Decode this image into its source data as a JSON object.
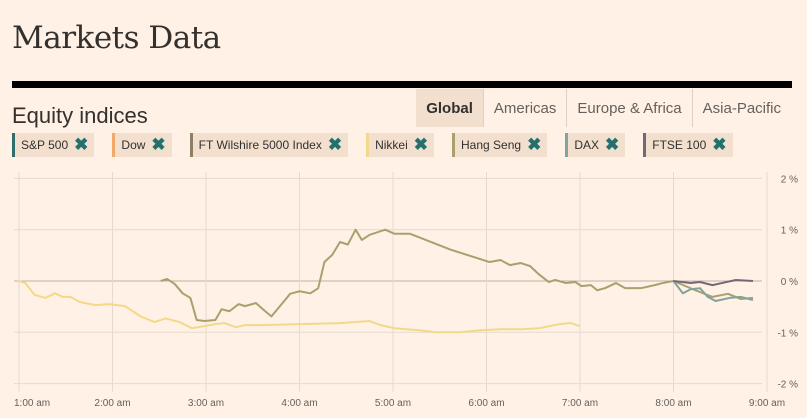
{
  "title": "Markets Data",
  "section": "Equity indices",
  "tabs": [
    {
      "label": "Global",
      "active": true
    },
    {
      "label": "Americas"
    },
    {
      "label": "Europe & Africa"
    },
    {
      "label": "Asia-Pacific"
    }
  ],
  "chips": [
    {
      "label": "S&P 500",
      "color": "#2e6f6e"
    },
    {
      "label": "Dow",
      "color": "#f0a968"
    },
    {
      "label": "FT Wilshire 5000 Index",
      "color": "#8f7f66"
    },
    {
      "label": "Nikkei",
      "color": "#f2d98a"
    },
    {
      "label": "Hang Seng",
      "color": "#ac9f6e"
    },
    {
      "label": "DAX",
      "color": "#7fa4a0"
    },
    {
      "label": "FTSE 100",
      "color": "#736878"
    }
  ],
  "remove_icon": "close-icon",
  "chart_data": {
    "type": "line",
    "xlabel": "",
    "ylabel": "",
    "x_ticks": [
      "1:00 am",
      "2:00 am",
      "3:00 am",
      "4:00 am",
      "5:00 am",
      "6:00 am",
      "7:00 am",
      "8:00 am",
      "9:00 am"
    ],
    "y_ticks": [
      "2 %",
      "1 %",
      "0 %",
      "-1 %",
      "-2 %"
    ],
    "ylim": [
      -2,
      2
    ],
    "xlim": [
      "1:00",
      "9:00"
    ],
    "grid": true,
    "series": [
      {
        "name": "Nikkei",
        "color": "#f2d98a",
        "points": [
          [
            "1:00",
            0
          ],
          [
            "1:04",
            -0.04
          ],
          [
            "1:10",
            -0.27
          ],
          [
            "1:17",
            -0.33
          ],
          [
            "1:23",
            -0.24
          ],
          [
            "1:28",
            -0.31
          ],
          [
            "1:33",
            -0.31
          ],
          [
            "1:39",
            -0.41
          ],
          [
            "1:49",
            -0.47
          ],
          [
            "1:58",
            -0.45
          ],
          [
            "2:08",
            -0.49
          ],
          [
            "2:18",
            -0.69
          ],
          [
            "2:27",
            -0.8
          ],
          [
            "2:34",
            -0.73
          ],
          [
            "2:43",
            -0.8
          ],
          [
            "2:51",
            -0.92
          ],
          [
            "2:59",
            -0.88
          ],
          [
            "3:06",
            -0.84
          ],
          [
            "3:12",
            -0.82
          ],
          [
            "3:19",
            -0.9
          ],
          [
            "3:25",
            -0.86
          ],
          [
            "3:35",
            -0.86
          ],
          [
            "4:00",
            -0.84
          ],
          [
            "4:26",
            -0.82
          ],
          [
            "4:45",
            -0.78
          ],
          [
            "4:52",
            -0.86
          ],
          [
            "5:01",
            -0.92
          ],
          [
            "5:17",
            -0.96
          ],
          [
            "5:27",
            -1.0
          ],
          [
            "5:43",
            -1.0
          ],
          [
            "5:56",
            -0.96
          ],
          [
            "6:09",
            -0.94
          ],
          [
            "6:22",
            -0.94
          ],
          [
            "6:34",
            -0.92
          ],
          [
            "6:47",
            -0.84
          ],
          [
            "6:54",
            -0.82
          ],
          [
            "7:00",
            -0.88
          ]
        ]
      },
      {
        "name": "Hang Seng",
        "color": "#ac9f6e",
        "points": [
          [
            "2:31",
            0
          ],
          [
            "2:35",
            0.04
          ],
          [
            "2:40",
            -0.06
          ],
          [
            "2:45",
            -0.24
          ],
          [
            "2:50",
            -0.33
          ],
          [
            "2:54",
            -0.76
          ],
          [
            "2:59",
            -0.78
          ],
          [
            "3:06",
            -0.76
          ],
          [
            "3:10",
            -0.55
          ],
          [
            "3:15",
            -0.59
          ],
          [
            "3:21",
            -0.45
          ],
          [
            "3:25",
            -0.49
          ],
          [
            "3:32",
            -0.43
          ],
          [
            "3:38",
            -0.59
          ],
          [
            "3:42",
            -0.69
          ],
          [
            "3:48",
            -0.47
          ],
          [
            "3:54",
            -0.25
          ],
          [
            "4:00",
            -0.2
          ],
          [
            "4:07",
            -0.24
          ],
          [
            "4:12",
            -0.14
          ],
          [
            "4:16",
            0.37
          ],
          [
            "4:21",
            0.51
          ],
          [
            "4:26",
            0.76
          ],
          [
            "4:31",
            0.71
          ],
          [
            "4:36",
            1.0
          ],
          [
            "4:40",
            0.8
          ],
          [
            "4:45",
            0.9
          ],
          [
            "4:55",
            1.0
          ],
          [
            "5:01",
            0.92
          ],
          [
            "5:11",
            0.92
          ],
          [
            "5:37",
            0.61
          ],
          [
            "6:02",
            0.37
          ],
          [
            "6:09",
            0.41
          ],
          [
            "6:15",
            0.31
          ],
          [
            "6:22",
            0.35
          ],
          [
            "6:28",
            0.29
          ],
          [
            "6:34",
            0.12
          ],
          [
            "6:40",
            -0.02
          ],
          [
            "6:44",
            0.02
          ],
          [
            "6:51",
            -0.04
          ],
          [
            "6:57",
            -0.02
          ],
          [
            "7:01",
            -0.1
          ],
          [
            "7:07",
            -0.08
          ],
          [
            "7:11",
            -0.18
          ],
          [
            "7:16",
            -0.14
          ],
          [
            "7:23",
            -0.04
          ],
          [
            "7:29",
            -0.14
          ],
          [
            "7:39",
            -0.14
          ],
          [
            "7:48",
            -0.08
          ],
          [
            "7:53",
            -0.04
          ],
          [
            "8:00",
            0
          ],
          [
            "8:14",
            -0.18
          ],
          [
            "8:25",
            -0.31
          ],
          [
            "8:35",
            -0.25
          ],
          [
            "8:43",
            -0.35
          ],
          [
            "8:51",
            -0.33
          ]
        ]
      },
      {
        "name": "DAX",
        "color": "#7fa4a0",
        "points": [
          [
            "8:00",
            0
          ],
          [
            "8:06",
            -0.24
          ],
          [
            "8:11",
            -0.16
          ],
          [
            "8:17",
            -0.14
          ],
          [
            "8:22",
            -0.31
          ],
          [
            "8:27",
            -0.39
          ],
          [
            "8:36",
            -0.33
          ],
          [
            "8:43",
            -0.31
          ],
          [
            "8:51",
            -0.37
          ]
        ]
      },
      {
        "name": "FTSE 100",
        "color": "#736878",
        "points": [
          [
            "8:00",
            0
          ],
          [
            "8:11",
            -0.04
          ],
          [
            "8:17",
            -0.02
          ],
          [
            "8:25",
            -0.08
          ],
          [
            "8:31",
            -0.04
          ],
          [
            "8:40",
            0.02
          ],
          [
            "8:51",
            0.0
          ]
        ]
      }
    ]
  }
}
